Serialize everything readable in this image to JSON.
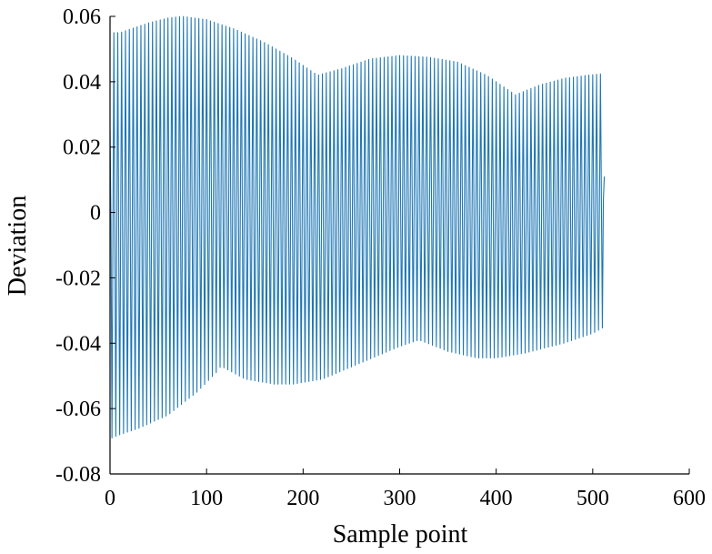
{
  "chart_data": {
    "type": "line",
    "title": "",
    "xlabel": "Sample point",
    "ylabel": "Deviation",
    "xlim": [
      0,
      600
    ],
    "ylim": [
      -0.08,
      0.06
    ],
    "xticks": [
      0,
      100,
      200,
      300,
      400,
      500,
      600
    ],
    "xtick_labels": [
      "0",
      "100",
      "200",
      "300",
      "400",
      "500",
      "600"
    ],
    "yticks": [
      -0.08,
      -0.06,
      -0.04,
      -0.02,
      0,
      0.02,
      0.04,
      0.06
    ],
    "ytick_labels": [
      "-0.08",
      "-0.06",
      "-0.04",
      "-0.02",
      "0",
      "0.02",
      "0.04",
      "0.06"
    ],
    "grid": false,
    "line_color": "#1f77b4",
    "series": [
      {
        "x_range": [
          0,
          512
        ],
        "points": 512,
        "samples_per_cycle": 4,
        "upper_envelope": {
          "x": [
            0,
            2,
            4,
            10,
            20,
            40,
            60,
            75,
            100,
            130,
            160,
            190,
            215,
            240,
            270,
            300,
            330,
            360,
            390,
            420,
            445,
            470,
            495,
            512
          ],
          "y": [
            0.025,
            0.057,
            0.055,
            0.055,
            0.056,
            0.058,
            0.0595,
            0.06,
            0.059,
            0.056,
            0.052,
            0.047,
            0.042,
            0.044,
            0.047,
            0.048,
            0.0475,
            0.046,
            0.042,
            0.036,
            0.039,
            0.041,
            0.042,
            0.0425
          ]
        },
        "lower_envelope": {
          "x": [
            0,
            2,
            10,
            30,
            60,
            90,
            110,
            115,
            140,
            170,
            190,
            220,
            260,
            300,
            320,
            350,
            380,
            400,
            430,
            470,
            500,
            512
          ],
          "y": [
            -0.025,
            -0.069,
            -0.068,
            -0.066,
            -0.062,
            -0.055,
            -0.049,
            -0.047,
            -0.051,
            -0.0525,
            -0.0525,
            -0.051,
            -0.046,
            -0.041,
            -0.039,
            -0.0425,
            -0.0445,
            -0.0445,
            -0.043,
            -0.04,
            -0.037,
            -0.035
          ]
        },
        "last_value": 0.011
      }
    ]
  }
}
